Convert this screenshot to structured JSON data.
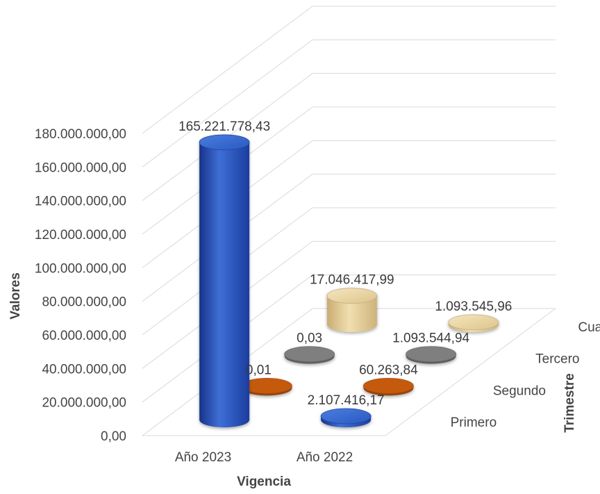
{
  "chart_data": {
    "type": "bar",
    "subtype": "3d-cylinder",
    "title": "",
    "xlabel": "Vigencia",
    "ylabel": "Valores",
    "zlabel": "Trimestre",
    "ylim": [
      0,
      180000000
    ],
    "y_ticks": [
      "0,00",
      "20.000.000,00",
      "40.000.000,00",
      "60.000.000,00",
      "80.000.000,00",
      "100.000.000,00",
      "120.000.000,00",
      "140.000.000,00",
      "160.000.000,00",
      "180.000.000,00"
    ],
    "categories": [
      "Año 2023",
      "Año 2022"
    ],
    "grid": true,
    "series": [
      {
        "name": "Primero",
        "color": "#2854b8",
        "values": [
          165221778.43,
          2107416.17
        ],
        "labels": [
          "165.221.778,43",
          "2.107.416,17"
        ]
      },
      {
        "name": "Segundo",
        "color": "#c55a11",
        "values": [
          0.01,
          60263.84
        ],
        "labels": [
          "0,01",
          "60.263,84"
        ]
      },
      {
        "name": "Tercero",
        "color": "#7f7f7f",
        "values": [
          0.03,
          1093544.94
        ],
        "labels": [
          "0,03",
          "1.093.544,94"
        ]
      },
      {
        "name": "Cuarto",
        "color": "#e8cf98",
        "values": [
          17046417.99,
          1093545.96
        ],
        "labels": [
          "17.046.417,99",
          "1.093.545,96"
        ]
      }
    ]
  }
}
